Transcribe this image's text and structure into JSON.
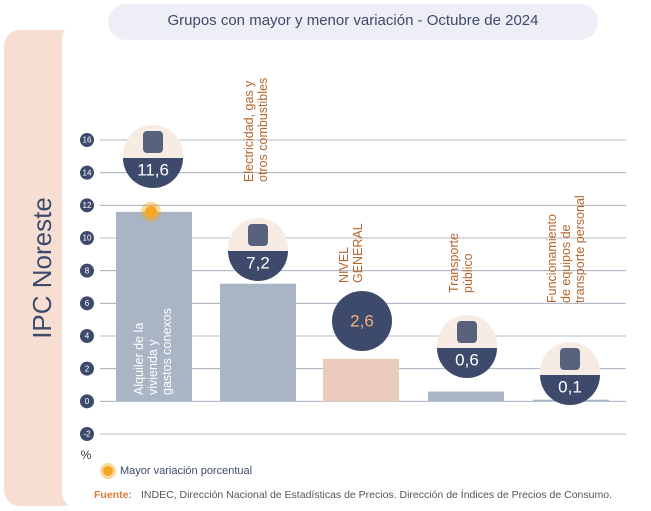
{
  "chart_data": {
    "type": "bar",
    "title": "Grupos con mayor y menor variación - Octubre de 2024",
    "side_label": "IPC Noreste",
    "y_unit": "%",
    "categories": [
      "Alquiler de la\nvivienda y\ngastos conexos",
      "Electricidad, gas y\notros combustibles",
      "NIVEL\nGENERAL",
      "Transporte\npúblico",
      "Funcionamiento\nde equipos de\ntransporte personal"
    ],
    "values": [
      11.6,
      7.2,
      2.6,
      0.6,
      0.1
    ],
    "value_labels": [
      "11,6",
      "7,2",
      "2,6",
      "0,6",
      "0,1"
    ],
    "colors": [
      "#a9b4c4",
      "#a9b4c4",
      "#ebcbbb",
      "#a9b4c4",
      "#a9b4c4"
    ],
    "highlight_index": 0,
    "highlight_color": "#f5a623",
    "legend": "Mayor variación porcentual",
    "ylim": [
      -2,
      16
    ],
    "yticks": [
      -2,
      0,
      2,
      4,
      6,
      8,
      10,
      12,
      14,
      16
    ],
    "grid": true,
    "source_label": "Fuente:",
    "source": "INDEC, Dirección Nacional de Estadísticas de Precios. Dirección de Índices de Precios de Consumo."
  }
}
